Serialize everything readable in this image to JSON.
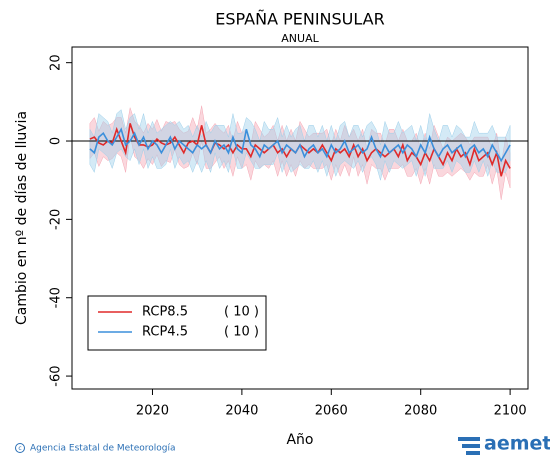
{
  "chart_data": {
    "type": "line",
    "title": "ESPAÑA PENINSULAR",
    "subtitle": "ANUAL",
    "xlabel": "Año",
    "ylabel": "Cambio en nº de días de lluvia",
    "xlim": [
      2002,
      2104
    ],
    "ylim": [
      -63.3,
      24
    ],
    "xticks": [
      2020,
      2040,
      2060,
      2080,
      2100
    ],
    "yticks": [
      20,
      0,
      -20,
      -40,
      -60
    ],
    "reference_line": 0,
    "legend": "lower left",
    "x": [
      2006,
      2007,
      2008,
      2009,
      2010,
      2011,
      2012,
      2013,
      2014,
      2015,
      2016,
      2017,
      2018,
      2019,
      2020,
      2021,
      2022,
      2023,
      2024,
      2025,
      2026,
      2027,
      2028,
      2029,
      2030,
      2031,
      2032,
      2033,
      2034,
      2035,
      2036,
      2037,
      2038,
      2039,
      2040,
      2041,
      2042,
      2043,
      2044,
      2045,
      2046,
      2047,
      2048,
      2049,
      2050,
      2051,
      2052,
      2053,
      2054,
      2055,
      2056,
      2057,
      2058,
      2059,
      2060,
      2061,
      2062,
      2063,
      2064,
      2065,
      2066,
      2067,
      2068,
      2069,
      2070,
      2071,
      2072,
      2073,
      2074,
      2075,
      2076,
      2077,
      2078,
      2079,
      2080,
      2081,
      2082,
      2083,
      2084,
      2085,
      2086,
      2087,
      2088,
      2089,
      2090,
      2091,
      2092,
      2093,
      2094,
      2095,
      2096,
      2097,
      2098,
      2099,
      2100
    ],
    "series": [
      {
        "name": "RCP8.5",
        "legend_note": "( 10 )",
        "color": "#e02a2a",
        "band_color": "#f4a7b4",
        "values": [
          0.5,
          1,
          -0.5,
          -1,
          0,
          -0.5,
          3,
          0,
          -3,
          4.5,
          1,
          -1,
          -1,
          -1.5,
          -1,
          0.5,
          -0.5,
          -1,
          -0.5,
          1,
          -1,
          -3,
          -0.5,
          0,
          -1,
          4,
          -1,
          -3,
          -0.5,
          -1,
          -2,
          -1,
          -3,
          -1,
          -2,
          -2,
          -4,
          -1,
          -2,
          -3,
          -2,
          -1,
          -3,
          -2,
          -4,
          -2,
          -3,
          -1,
          -2,
          -3,
          -2,
          -3,
          -1,
          -3,
          -5,
          -2,
          -3,
          -2,
          -4,
          -1,
          -4,
          -2,
          -5,
          -3,
          -2,
          -3,
          -4,
          -3,
          -2,
          -4,
          -1,
          -5,
          -3,
          -4,
          -6,
          -3,
          -5,
          -2,
          -4,
          -6,
          -3,
          -5,
          -2,
          -4,
          -3,
          -6,
          -2,
          -5,
          -4,
          -3,
          -6,
          -3,
          -9,
          -5,
          -7
        ],
        "upper": [
          4.5,
          6,
          2.5,
          5,
          4,
          4.5,
          6,
          6,
          2,
          8.5,
          5,
          4,
          2,
          4.5,
          3,
          5.5,
          2.5,
          5,
          4.5,
          5,
          3,
          2,
          2.5,
          6,
          3,
          9,
          2,
          3,
          4.5,
          3,
          2,
          4,
          0,
          5,
          2,
          3,
          -1,
          5,
          3,
          1,
          2,
          4,
          0,
          4,
          0,
          3,
          0,
          5,
          3,
          1,
          2,
          2,
          2,
          3,
          -1,
          3,
          0,
          4,
          1,
          3,
          0,
          3,
          -2,
          3,
          2,
          2,
          -1,
          3,
          3,
          0,
          3,
          0,
          0,
          2,
          -2,
          2,
          -2,
          4,
          1,
          -2,
          1,
          0,
          1,
          2,
          1,
          -1,
          1,
          1,
          1,
          1,
          -2,
          2,
          -6,
          1,
          -3
        ],
        "lower": [
          -4.5,
          -3,
          -6.5,
          -4,
          -5,
          -4.5,
          -3,
          -4,
          -8,
          1.5,
          -4,
          -5,
          -7,
          -4.5,
          -6,
          -3.5,
          -6.5,
          -5,
          -5.5,
          -2,
          -6,
          -7,
          -6.5,
          -3,
          -6,
          0,
          -7,
          -7,
          -5.5,
          -4,
          -7,
          -5,
          -9,
          -4,
          -7,
          -6,
          -10,
          -5,
          -7,
          -6,
          -7,
          -5,
          -9,
          -5,
          -9,
          -6,
          -9,
          -5,
          -7,
          -6,
          -7,
          -7,
          -7,
          -6,
          -10,
          -6,
          -9,
          -6,
          -9,
          -4,
          -9,
          -6,
          -11,
          -6,
          -7,
          -7,
          -10,
          -7,
          -7,
          -7,
          -6,
          -9,
          -9,
          -7,
          -11,
          -7,
          -11,
          -6,
          -9,
          -9,
          -8,
          -9,
          -8,
          -7,
          -8,
          -10,
          -8,
          -9,
          -9,
          -6,
          -11,
          -7,
          -15,
          -8,
          -12
        ]
      },
      {
        "name": "RCP4.5",
        "legend_note": "( 10 )",
        "color": "#3b8fdb",
        "band_color": "#9fd0ea",
        "values": [
          -2,
          -3,
          1,
          2,
          0,
          -1,
          1,
          3,
          -1,
          0,
          2,
          -1,
          1,
          -2,
          0,
          -1,
          -3,
          -1,
          1,
          -2,
          0,
          -1,
          -2,
          -3,
          -1,
          -2,
          -1,
          -3,
          0,
          -2,
          -1,
          -3,
          1,
          -2,
          -3,
          3,
          -1,
          -2,
          -4,
          -1,
          -2,
          -1,
          0,
          -3,
          -1,
          -2,
          -3,
          -1,
          -4,
          -2,
          -1,
          -3,
          -2,
          -4,
          -1,
          -3,
          -2,
          0,
          -3,
          -2,
          -1,
          -3,
          -2,
          1,
          -2,
          -4,
          -1,
          -3,
          -2,
          -1,
          -3,
          -1,
          -2,
          -4,
          -1,
          -3,
          1,
          -2,
          -4,
          -2,
          -1,
          -3,
          -2,
          -1,
          -4,
          -2,
          -1,
          -3,
          -2,
          -4,
          -1,
          -3,
          -5,
          -3,
          -1
        ],
        "upper": [
          3,
          1,
          7,
          6,
          5,
          2,
          7,
          8,
          3,
          6,
          7,
          3,
          7,
          2,
          5,
          2,
          3,
          4,
          5,
          4,
          5,
          3,
          4,
          1,
          4,
          1,
          5,
          2,
          4,
          4,
          4,
          1,
          7,
          2,
          2,
          6,
          5,
          3,
          0,
          5,
          3,
          3,
          6,
          1,
          4,
          1,
          3,
          4,
          0,
          4,
          4,
          1,
          4,
          0,
          4,
          0,
          4,
          5,
          1,
          4,
          4,
          1,
          4,
          5,
          3,
          -1,
          5,
          2,
          2,
          5,
          2,
          3,
          4,
          0,
          4,
          0,
          7,
          3,
          0,
          4,
          4,
          1,
          4,
          3,
          1,
          1,
          5,
          2,
          2,
          2,
          4,
          1,
          1,
          1,
          4
        ],
        "lower": [
          -6,
          -8,
          -2,
          -3,
          -4,
          -7,
          -3,
          -2,
          -4,
          -5,
          -2,
          -6,
          -2,
          -7,
          -4,
          -7,
          -7,
          -6,
          -2,
          -7,
          -4,
          -6,
          -5,
          -8,
          -5,
          -8,
          -5,
          -8,
          -3,
          -7,
          -5,
          -8,
          -2,
          -7,
          -7,
          -3,
          -5,
          -7,
          -7,
          -6,
          -6,
          -6,
          -3,
          -8,
          -5,
          -8,
          -7,
          -6,
          -7,
          -7,
          -5,
          -8,
          -5,
          -9,
          -5,
          -9,
          -6,
          -5,
          -6,
          -7,
          -5,
          -8,
          -5,
          -4,
          -6,
          -10,
          -5,
          -8,
          -5,
          -6,
          -7,
          -6,
          -5,
          -9,
          -5,
          -9,
          -3,
          -7,
          -7,
          -7,
          -5,
          -8,
          -5,
          -6,
          -8,
          -8,
          -5,
          -8,
          -5,
          -9,
          -5,
          -8,
          -8,
          -8,
          -5
        ]
      }
    ]
  },
  "footer": {
    "agency": "Agencia Estatal de Meteorología",
    "logo": "aemet"
  }
}
